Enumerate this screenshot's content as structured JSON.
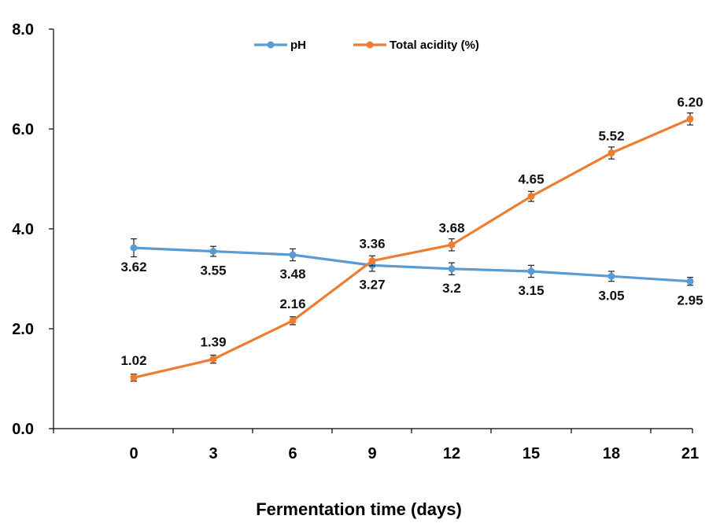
{
  "chart_data": {
    "type": "line",
    "title": "",
    "xlabel": "Fermentation time (days)",
    "ylabel": "",
    "x": [
      0,
      3,
      6,
      9,
      12,
      15,
      18,
      21
    ],
    "x_tick_labels": [
      "0",
      "3",
      "6",
      "9",
      "12",
      "15",
      "18",
      "21"
    ],
    "y_tick_labels": [
      "0.0",
      "2.0",
      "4.0",
      "6.0",
      "8.0"
    ],
    "y_ticks": [
      0,
      2,
      4,
      6,
      8
    ],
    "ylim": [
      0,
      8
    ],
    "grid": false,
    "legend_position": "top-center",
    "series": [
      {
        "name": "pH",
        "color": "#5b9bd5",
        "values": [
          3.62,
          3.55,
          3.48,
          3.27,
          3.2,
          3.15,
          3.05,
          2.95
        ],
        "errors": [
          0.18,
          0.1,
          0.12,
          0.12,
          0.12,
          0.12,
          0.1,
          0.08
        ],
        "labels": [
          "3.62",
          "3.55",
          "3.48",
          "3.27",
          "3.2",
          "3.15",
          "3.05",
          "2.95"
        ],
        "label_position": "below"
      },
      {
        "name": "Total acidity (%)",
        "color": "#ed7d31",
        "values": [
          1.02,
          1.39,
          2.16,
          3.36,
          3.68,
          4.65,
          5.52,
          6.2
        ],
        "errors": [
          0.07,
          0.08,
          0.08,
          0.1,
          0.12,
          0.1,
          0.12,
          0.12
        ],
        "labels": [
          "1.02",
          "1.39",
          "2.16",
          "3.36",
          "3.68",
          "4.65",
          "5.52",
          "6.20"
        ],
        "label_position": "above"
      }
    ]
  }
}
